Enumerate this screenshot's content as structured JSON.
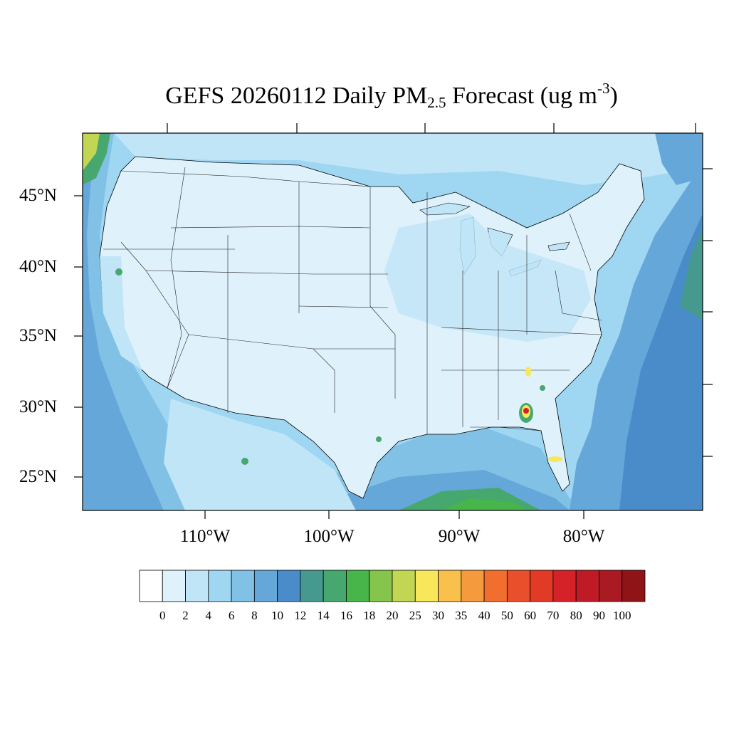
{
  "title": {
    "prefix": "GEFS 20260112 Daily PM",
    "sub": "2.5",
    "middle": " Forecast (ug m",
    "sup": "-3",
    "suffix": ")"
  },
  "lat_labels": [
    "45°N",
    "40°N",
    "35°N",
    "30°N",
    "25°N"
  ],
  "lon_labels": [
    "110°W",
    "100°W",
    "90°W",
    "80°W"
  ],
  "colorbar": {
    "labels": [
      "0",
      "2",
      "4",
      "6",
      "8",
      "10",
      "12",
      "14",
      "16",
      "18",
      "20",
      "25",
      "30",
      "35",
      "40",
      "50",
      "60",
      "70",
      "80",
      "90",
      "100"
    ],
    "colors": [
      "#ffffff",
      "#dff1fb",
      "#bfe5f7",
      "#9fd6f2",
      "#82c1e6",
      "#66a7da",
      "#4a8cca",
      "#46998f",
      "#47a86f",
      "#47b54a",
      "#86c54b",
      "#c3d653",
      "#f8e75a",
      "#f9c04b",
      "#f69b3d",
      "#f26e2e",
      "#e84f2a",
      "#e13a26",
      "#d52229",
      "#be1b26",
      "#aa1a22",
      "#8f1418"
    ]
  },
  "map": {
    "ocean_color": "#6aa5d8",
    "land_color": "#dff1fb",
    "hotspots": [
      {
        "name": "florida-georgia",
        "color": "#d52229"
      },
      {
        "name": "south-carolina",
        "color": "#f8e75a"
      },
      {
        "name": "south-florida",
        "color": "#f8e75a"
      }
    ]
  }
}
